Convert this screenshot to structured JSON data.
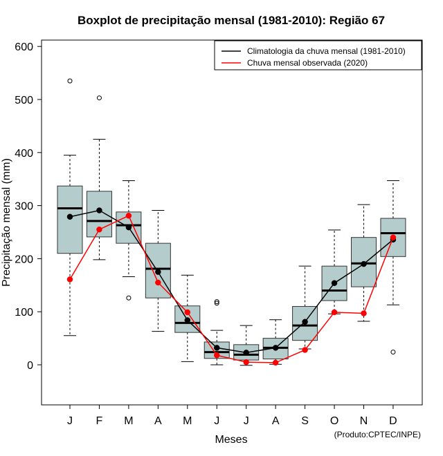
{
  "chart_data": {
    "type": "boxplot",
    "title": "Boxplot de precipitação mensal (1981-2010): Região 67",
    "xlabel": "Meses",
    "ylabel": "Precipitação mensal (mm)",
    "ylim": [
      -75,
      610
    ],
    "yticks": [
      0,
      100,
      200,
      300,
      400,
      500,
      600
    ],
    "credit": "(Produto:CPTEC/INPE)",
    "categories": [
      "J",
      "F",
      "M",
      "A",
      "M",
      "J",
      "J",
      "A",
      "S",
      "O",
      "N",
      "D"
    ],
    "boxes": [
      {
        "whisker_low": 55,
        "q1": 210,
        "median": 295,
        "q3": 337,
        "whisker_high": 395,
        "outliers": [
          535
        ]
      },
      {
        "whisker_low": 198,
        "q1": 241,
        "median": 271,
        "q3": 327,
        "whisker_high": 425,
        "outliers": [
          503
        ]
      },
      {
        "whisker_low": 166,
        "q1": 229,
        "median": 263,
        "q3": 288,
        "whisker_high": 347,
        "outliers": [
          126
        ]
      },
      {
        "whisker_low": 63,
        "q1": 126,
        "median": 181,
        "q3": 229,
        "whisker_high": 291,
        "outliers": []
      },
      {
        "whisker_low": 6,
        "q1": 61,
        "median": 79,
        "q3": 111,
        "whisker_high": 169,
        "outliers": []
      },
      {
        "whisker_low": 0,
        "q1": 12,
        "median": 24,
        "q3": 43,
        "whisker_high": 65,
        "outliers": [
          116,
          119
        ]
      },
      {
        "whisker_low": -1,
        "q1": 9,
        "median": 19,
        "q3": 38,
        "whisker_high": 74,
        "outliers": []
      },
      {
        "whisker_low": 1,
        "q1": 11,
        "median": 32,
        "q3": 50,
        "whisker_high": 85,
        "outliers": []
      },
      {
        "whisker_low": 30,
        "q1": 46,
        "median": 74,
        "q3": 110,
        "whisker_high": 186,
        "outliers": []
      },
      {
        "whisker_low": 96,
        "q1": 121,
        "median": 140,
        "q3": 186,
        "whisker_high": 254,
        "outliers": []
      },
      {
        "whisker_low": 82,
        "q1": 147,
        "median": 191,
        "q3": 240,
        "whisker_high": 302,
        "outliers": []
      },
      {
        "whisker_low": 113,
        "q1": 204,
        "median": 248,
        "q3": 276,
        "whisker_high": 347,
        "outliers": [
          24
        ]
      }
    ],
    "series": [
      {
        "name": "Climatologia da chuva mensal (1981-2010)",
        "color": "#000000",
        "values": [
          279,
          291,
          259,
          175,
          84,
          32,
          23,
          32,
          81,
          154,
          190,
          236
        ]
      },
      {
        "name": "Chuva mensal observada (2020)",
        "color": "#ff0000",
        "values": [
          161,
          255,
          281,
          155,
          99,
          18,
          5,
          4,
          28,
          99,
          97,
          240
        ]
      }
    ],
    "legend_position": "top-right",
    "box_fill": "#b5cccc"
  }
}
